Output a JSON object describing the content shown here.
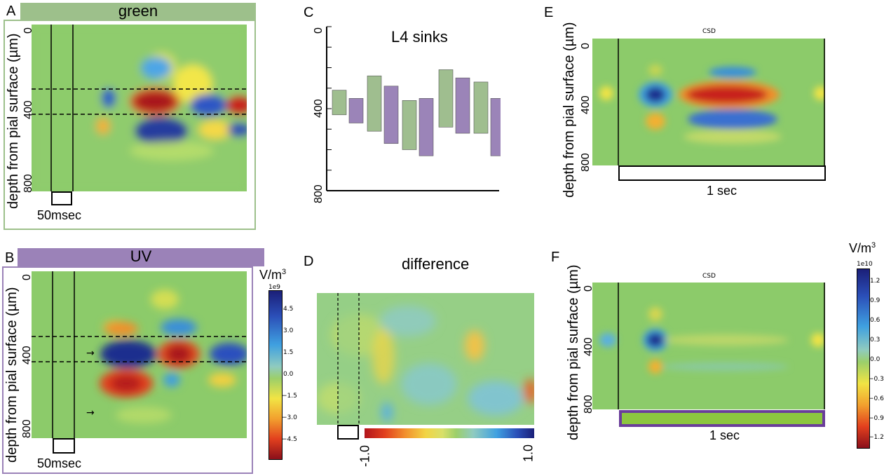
{
  "panels": {
    "A": {
      "letter": "A",
      "banner": "green",
      "banner_color": "#9dc08b",
      "frame_color": "#9dc08b",
      "ylabel": "depth from pial surface (µm)",
      "ticks": [
        "0",
        "400",
        "800"
      ],
      "scalebar": "50msec"
    },
    "B": {
      "letter": "B",
      "banner": "UV",
      "banner_color": "#9b82b8",
      "frame_color": "#9b82b8",
      "ylabel": "depth from pial surface (µm)",
      "ticks": [
        "0",
        "400",
        "800"
      ],
      "scalebar": "50msec",
      "colorbar_unit": "V/m",
      "colorbar_unit_sup": "3",
      "colorbar_exp": "1e9",
      "colorbar_ticks": [
        "4.5",
        "3.0",
        "1.5",
        "0.0",
        "−1.5",
        "−3.0",
        "−4.5"
      ]
    },
    "C": {
      "letter": "C",
      "title": "L4 sinks",
      "ticks": [
        "0",
        "400",
        "800"
      ]
    },
    "D": {
      "letter": "D",
      "title": "difference",
      "colorbar_min": "-1.0",
      "colorbar_max": "1.0"
    },
    "E": {
      "letter": "E",
      "ylabel": "depth from pial surface (µm)",
      "ticks": [
        "0",
        "400",
        "800"
      ],
      "subtitle": "CSD",
      "scalebar": "1 sec"
    },
    "F": {
      "letter": "F",
      "ylabel": "depth from pial surface (µm)",
      "ticks": [
        "0",
        "400",
        "800"
      ],
      "subtitle": "CSD",
      "scalebar": "1 sec",
      "colorbar_unit": "V/m",
      "colorbar_unit_sup": "3",
      "colorbar_exp": "1e10",
      "colorbar_ticks": [
        "1.2",
        "0.9",
        "0.6",
        "0.3",
        "0.0",
        "−0.3",
        "−0.6",
        "−0.9",
        "−1.2"
      ]
    }
  },
  "colors": {
    "green_bar": "#9fbe8f",
    "uv_bar": "#9b84b8",
    "heat_bg": "#8ccb6a",
    "f_bar_fill": "#8cc63f",
    "f_bar_edge": "#6a3d9a"
  },
  "chart_data": {
    "type": "bar",
    "title": "L4 sinks",
    "ylim": [
      800,
      0
    ],
    "note_units": "depth (µm)",
    "series": [
      {
        "color": "#9fbe8f",
        "bars": [
          [
            310,
            430
          ],
          [
            240,
            510
          ],
          [
            360,
            600
          ],
          [
            210,
            490
          ],
          [
            270,
            520
          ]
        ]
      },
      {
        "color": "#9b84b8",
        "bars": [
          [
            350,
            470
          ],
          [
            290,
            570
          ],
          [
            350,
            630
          ],
          [
            250,
            520
          ],
          [
            350,
            630
          ]
        ]
      }
    ]
  }
}
